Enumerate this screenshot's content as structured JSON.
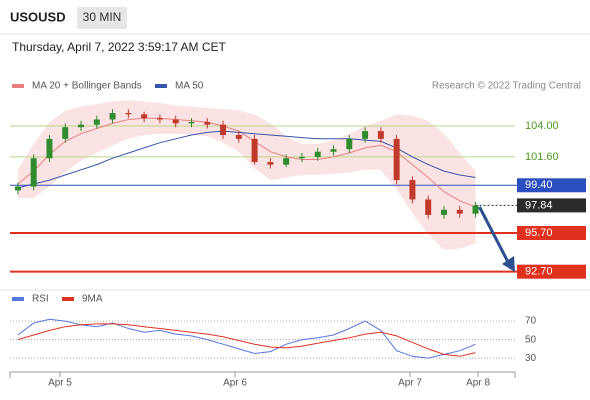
{
  "header": {
    "symbol": "USOUSD",
    "interval": "30 MIN",
    "timestamp": "Thursday, April 7, 2022 3:59:17 AM CET"
  },
  "chart_data": [
    {
      "type": "candlestick",
      "annotation": "Research © 2022 Trading Central",
      "x": [
        0,
        1,
        2,
        3,
        4,
        5,
        6,
        7,
        8,
        9,
        10,
        11,
        12,
        13,
        14,
        15,
        16,
        17,
        18,
        19,
        20,
        21,
        22,
        23,
        24,
        25,
        26,
        27,
        28,
        29
      ],
      "xlim": [
        -0.5,
        31.5
      ],
      "ylim": [
        91.9,
        106.4
      ],
      "up_color": "#2e8b2e",
      "down_color": "#c0392b",
      "open": [
        99.0,
        99.3,
        101.5,
        103.0,
        103.9,
        104.1,
        104.5,
        105.0,
        104.9,
        104.6,
        104.5,
        104.2,
        104.3,
        104.1,
        103.3,
        103.0,
        101.2,
        101.0,
        101.5,
        101.6,
        102.0,
        102.2,
        103.0,
        103.6,
        103.0,
        99.8,
        98.3,
        97.1,
        97.5,
        97.2
      ],
      "high": [
        99.6,
        101.8,
        103.3,
        104.2,
        104.4,
        104.8,
        105.3,
        105.3,
        105.1,
        104.9,
        104.8,
        104.6,
        104.6,
        104.4,
        103.6,
        103.3,
        101.5,
        101.8,
        101.9,
        102.3,
        102.5,
        103.3,
        103.9,
        103.9,
        103.3,
        100.1,
        98.6,
        97.8,
        97.8,
        98.1
      ],
      "low": [
        98.7,
        99.0,
        101.2,
        102.7,
        103.6,
        103.8,
        104.2,
        104.6,
        104.3,
        104.2,
        103.9,
        103.9,
        103.8,
        103.0,
        102.7,
        101.0,
        100.7,
        100.8,
        101.2,
        101.3,
        101.7,
        101.9,
        102.7,
        102.7,
        99.5,
        98.0,
        96.8,
        96.8,
        96.9,
        96.9
      ],
      "close": [
        99.3,
        101.5,
        103.0,
        103.9,
        104.1,
        104.5,
        105.0,
        104.9,
        104.6,
        104.5,
        104.2,
        104.3,
        104.1,
        103.3,
        103.0,
        101.2,
        101.0,
        101.5,
        101.6,
        102.0,
        102.2,
        103.0,
        103.6,
        103.0,
        99.8,
        98.3,
        97.1,
        97.5,
        97.2,
        97.84
      ],
      "series": [
        {
          "name": "MA 20 + Bollinger Bands",
          "color": "#e88080",
          "values": [
            99.5,
            100.5,
            101.8,
            102.8,
            103.4,
            103.8,
            104.2,
            104.5,
            104.6,
            104.6,
            104.5,
            104.4,
            104.3,
            104.0,
            103.6,
            102.8,
            102.0,
            101.6,
            101.4,
            101.4,
            101.6,
            101.9,
            102.3,
            102.5,
            102.0,
            101.0,
            100.0,
            98.9,
            98.2,
            97.7
          ],
          "band_upper": [
            100.6,
            102.6,
            104.3,
            105.2,
            105.5,
            105.7,
            105.9,
            106.0,
            105.9,
            105.8,
            105.6,
            105.5,
            105.4,
            105.3,
            105.2,
            104.9,
            104.2,
            103.2,
            102.6,
            102.6,
            102.9,
            103.4,
            104.0,
            104.4,
            104.9,
            104.8,
            104.4,
            103.4,
            101.9,
            100.5
          ],
          "band_lower": [
            98.4,
            98.4,
            99.3,
            100.4,
            101.3,
            101.9,
            102.5,
            103.0,
            103.3,
            103.4,
            103.4,
            103.3,
            103.2,
            102.7,
            102.0,
            100.7,
            99.8,
            100.0,
            100.2,
            100.2,
            100.3,
            100.4,
            100.6,
            100.6,
            99.1,
            97.2,
            95.6,
            94.4,
            94.5,
            94.9
          ]
        },
        {
          "name": "MA 50",
          "color": "#3355aa",
          "values": [
            99.2,
            99.5,
            99.8,
            100.2,
            100.6,
            101.0,
            101.5,
            101.9,
            102.3,
            102.7,
            103.0,
            103.3,
            103.5,
            103.6,
            103.5,
            103.4,
            103.3,
            103.2,
            103.1,
            103.0,
            103.0,
            103.0,
            102.9,
            102.8,
            102.3,
            101.6,
            101.0,
            100.5,
            100.2,
            100.0
          ]
        }
      ],
      "levels": [
        {
          "value": 104.0,
          "label": "104.00",
          "color": "#b5d78a",
          "text_color": "#4c9a1f",
          "style": "text",
          "line": "full"
        },
        {
          "value": 101.6,
          "label": "101.60",
          "color": "#b5d78a",
          "text_color": "#4c9a1f",
          "style": "text",
          "line": "full"
        },
        {
          "value": 99.4,
          "label": "99.40",
          "color": "#2b4fbf",
          "text_color": "#ffffff",
          "style": "box",
          "line": "full"
        },
        {
          "value": 97.84,
          "label": "97.84",
          "color": "#2b2b2b",
          "text_color": "#ffffff",
          "style": "box",
          "line": "dotted"
        },
        {
          "value": 95.7,
          "label": "95.70",
          "color": "#e0301e",
          "text_color": "#ffffff",
          "style": "box",
          "line": "full"
        },
        {
          "value": 92.7,
          "label": "92.70",
          "color": "#e0301e",
          "text_color": "#ffffff",
          "style": "box",
          "line": "full"
        }
      ]
    },
    {
      "type": "line",
      "x": [
        0,
        1,
        2,
        3,
        4,
        5,
        6,
        7,
        8,
        9,
        10,
        11,
        12,
        13,
        14,
        15,
        16,
        17,
        18,
        19,
        20,
        21,
        22,
        23,
        24,
        25,
        26,
        27,
        28,
        29
      ],
      "xlim": [
        -0.5,
        31.5
      ],
      "ylim": [
        15,
        82
      ],
      "yticks": [
        70,
        50,
        30
      ],
      "xticks": [
        {
          "value": 2.67,
          "label": "Apr 5"
        },
        {
          "value": 13.76,
          "label": "Apr 6"
        },
        {
          "value": 24.85,
          "label": "Apr 7"
        },
        {
          "value": 29.16,
          "label": "Apr 8"
        }
      ],
      "series": [
        {
          "name": "RSI",
          "color": "#5577dd",
          "values": [
            55,
            68,
            72,
            70,
            66,
            64,
            68,
            62,
            58,
            60,
            56,
            54,
            50,
            45,
            40,
            35,
            37,
            45,
            50,
            52,
            55,
            62,
            70,
            60,
            38,
            32,
            30,
            34,
            38,
            45
          ]
        },
        {
          "name": "9MA",
          "color": "#dd3322",
          "values": [
            50,
            55,
            60,
            64,
            66,
            67,
            67,
            66,
            64,
            62,
            60,
            58,
            56,
            53,
            49,
            45,
            42,
            41,
            43,
            46,
            49,
            52,
            56,
            58,
            54,
            47,
            40,
            34,
            32,
            36
          ]
        }
      ]
    }
  ]
}
